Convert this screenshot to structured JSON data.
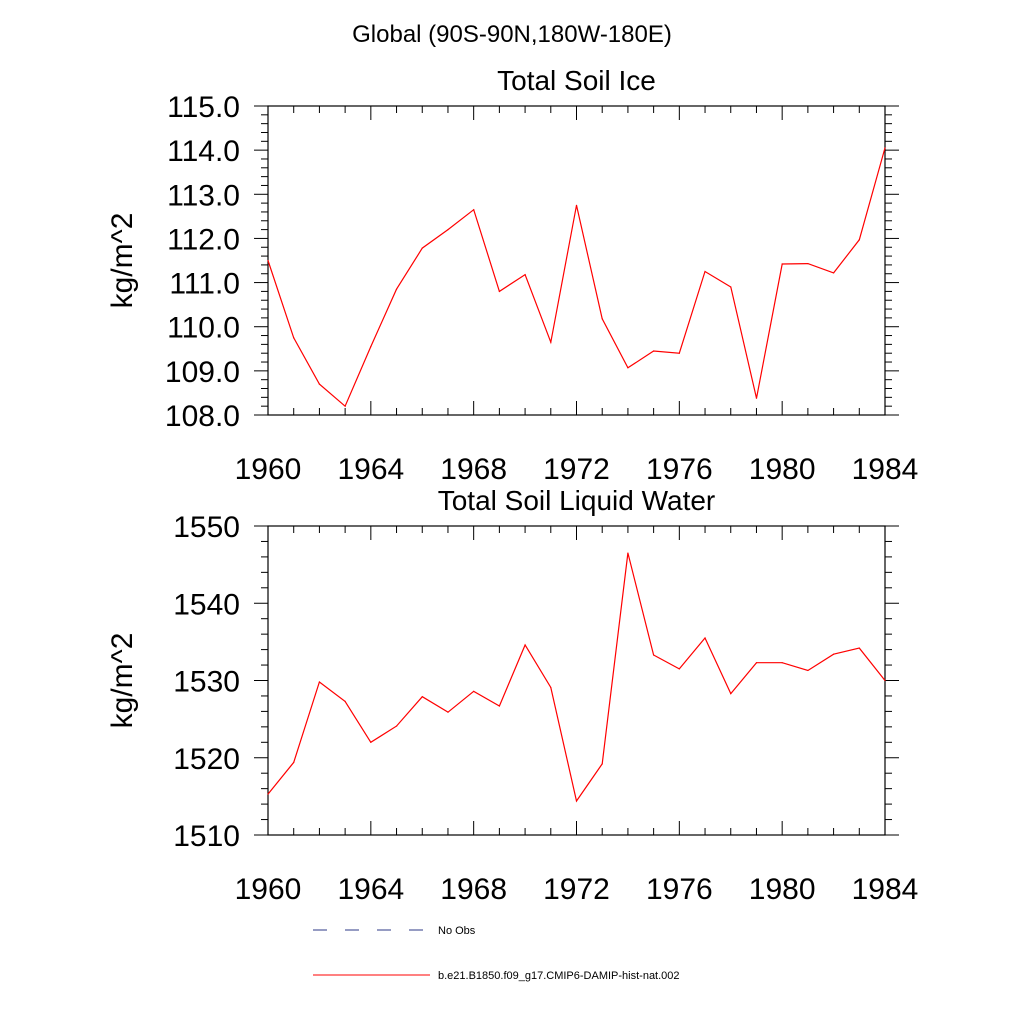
{
  "figure": {
    "region_title": "Global (90S-90N,180W-180E)"
  },
  "legend": {
    "entries": [
      {
        "label": "No Obs",
        "color": "#2e3a87",
        "style": "dashed"
      },
      {
        "label": "b.e21.B1850.f09_g17.CMIP6-DAMIP-hist-nat.002",
        "color": "#ff0000",
        "style": "solid"
      }
    ]
  },
  "chart_data": [
    {
      "type": "line",
      "title": "Total Soil Ice",
      "xlabel": "",
      "ylabel": "kg/m^2",
      "xlim": [
        1960,
        1984
      ],
      "ylim": [
        108.0,
        115.0
      ],
      "xticks": [
        "1960",
        "1964",
        "1968",
        "1972",
        "1976",
        "1980",
        "1984"
      ],
      "yticks": [
        "108.0",
        "109.0",
        "110.0",
        "111.0",
        "112.0",
        "113.0",
        "114.0",
        "115.0"
      ],
      "grid": false,
      "series": [
        {
          "name": "b.e21.B1850.f09_g17.CMIP6-DAMIP-hist-nat.002",
          "color": "#ff0000",
          "x": [
            1960,
            1961,
            1962,
            1963,
            1964,
            1965,
            1966,
            1967,
            1968,
            1969,
            1970,
            1971,
            1972,
            1973,
            1974,
            1975,
            1976,
            1977,
            1978,
            1979,
            1980,
            1981,
            1982,
            1983,
            1984
          ],
          "y": [
            111.5,
            109.75,
            108.7,
            108.2,
            109.55,
            110.85,
            111.78,
            112.2,
            112.65,
            110.8,
            111.18,
            109.65,
            112.75,
            110.18,
            109.07,
            109.45,
            109.4,
            111.25,
            110.9,
            108.38,
            111.42,
            111.43,
            111.22,
            111.97,
            114.05
          ]
        }
      ]
    },
    {
      "type": "line",
      "title": "Total Soil Liquid Water",
      "xlabel": "",
      "ylabel": "kg/m^2",
      "xlim": [
        1960,
        1984
      ],
      "ylim": [
        1510,
        1550
      ],
      "xticks": [
        "1960",
        "1964",
        "1968",
        "1972",
        "1976",
        "1980",
        "1984"
      ],
      "yticks": [
        "1510",
        "1520",
        "1530",
        "1540",
        "1550"
      ],
      "grid": false,
      "series": [
        {
          "name": "b.e21.B1850.f09_g17.CMIP6-DAMIP-hist-nat.002",
          "color": "#ff0000",
          "x": [
            1960,
            1961,
            1962,
            1963,
            1964,
            1965,
            1966,
            1967,
            1968,
            1969,
            1970,
            1971,
            1972,
            1973,
            1974,
            1975,
            1976,
            1977,
            1978,
            1979,
            1980,
            1981,
            1982,
            1983,
            1984
          ],
          "y": [
            1515.3,
            1519.4,
            1529.8,
            1527.3,
            1522.0,
            1524.1,
            1527.9,
            1525.9,
            1528.6,
            1526.7,
            1534.6,
            1529.1,
            1514.4,
            1519.2,
            1546.5,
            1533.3,
            1531.5,
            1535.5,
            1528.3,
            1532.3,
            1532.3,
            1531.3,
            1533.4,
            1534.2,
            1530.0
          ]
        }
      ]
    }
  ]
}
